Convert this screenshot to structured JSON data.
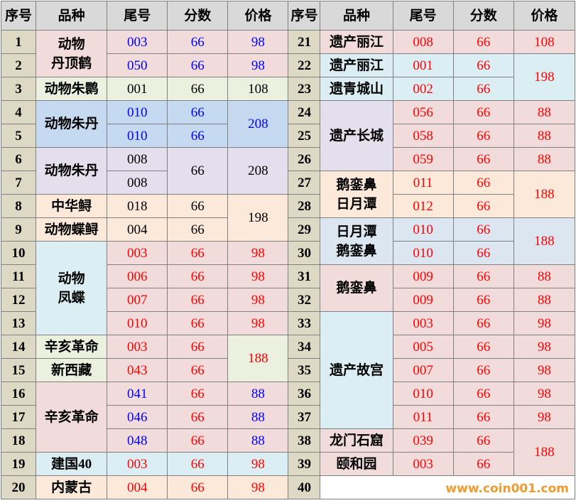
{
  "table": {
    "header": [
      "序号",
      "品种",
      "尾号",
      "分数",
      "价格",
      "序号",
      "品种",
      "尾号",
      "分数",
      "价格"
    ],
    "left": [
      [
        "1",
        "动物\n丹顶鹤",
        "003",
        "66",
        "98"
      ],
      [
        "2",
        "050",
        "66",
        "98"
      ],
      [
        "3",
        "动物朱鹮",
        "001",
        "66",
        "108"
      ],
      [
        "4",
        "动物朱丹",
        "010",
        "66",
        "208"
      ],
      [
        "5",
        "010",
        "66"
      ],
      [
        "6",
        "动物朱丹",
        "008",
        "66",
        "208"
      ],
      [
        "7",
        "008"
      ],
      [
        "8",
        "中华鲟",
        "018",
        "66",
        "198"
      ],
      [
        "9",
        "动物蝶鲟",
        "004",
        "66"
      ],
      [
        "10",
        "动物\n凤蝶",
        "003",
        "66",
        "98"
      ],
      [
        "11",
        "006",
        "66",
        "98"
      ],
      [
        "12",
        "007",
        "66",
        "98"
      ],
      [
        "13",
        "010",
        "66",
        "98"
      ],
      [
        "14",
        "辛亥革命",
        "003",
        "66",
        "188"
      ],
      [
        "15",
        "新西藏",
        "043",
        "66"
      ],
      [
        "16",
        "辛亥革命",
        "041",
        "66",
        "88"
      ],
      [
        "17",
        "046",
        "66",
        "88"
      ],
      [
        "18",
        "048",
        "66",
        "88"
      ],
      [
        "19",
        "建国40",
        "003",
        "66",
        "98"
      ],
      [
        "20",
        "内蒙古",
        "004",
        "66",
        "98"
      ]
    ],
    "right": [
      [
        "21",
        "遗产丽江",
        "008",
        "66",
        "108"
      ],
      [
        "22",
        "遗产丽江",
        "001",
        "66",
        "198"
      ],
      [
        "23",
        "遗青城山",
        "002",
        "66"
      ],
      [
        "24",
        "遗产长城",
        "056",
        "66",
        "88"
      ],
      [
        "25",
        "058",
        "66",
        "88"
      ],
      [
        "26",
        "059",
        "66",
        "88"
      ],
      [
        "27",
        "鹅銮鼻\n日月潭",
        "011",
        "66",
        "188"
      ],
      [
        "28",
        "012",
        "66"
      ],
      [
        "29",
        "日月潭\n鹅銮鼻",
        "010",
        "66",
        "188"
      ],
      [
        "30",
        "010",
        "66"
      ],
      [
        "31",
        "鹅銮鼻",
        "009",
        "66",
        "88"
      ],
      [
        "32",
        "009",
        "66",
        "88"
      ],
      [
        "33",
        "遗产故宫",
        "003",
        "66",
        "98"
      ],
      [
        "34",
        "005",
        "66",
        "98"
      ],
      [
        "35",
        "007",
        "66",
        "98"
      ],
      [
        "36",
        "010",
        "66",
        "98"
      ],
      [
        "37",
        "011",
        "66",
        "98"
      ],
      [
        "38",
        "龙门石窟",
        "039",
        "66",
        "188"
      ],
      [
        "39",
        "颐和园",
        "003",
        "66"
      ],
      [
        "40",
        "www.coin001.com"
      ]
    ]
  }
}
